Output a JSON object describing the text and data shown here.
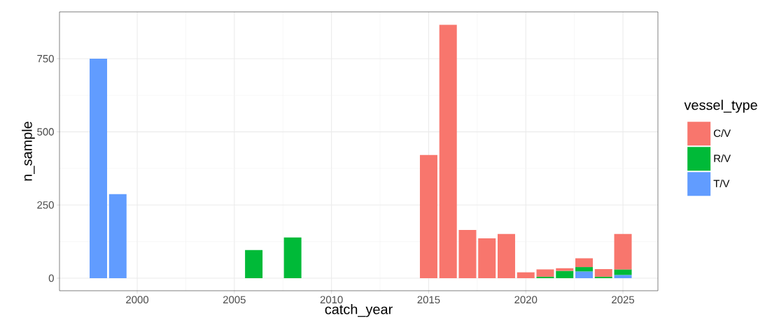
{
  "chart_data": {
    "type": "bar",
    "stacked": true,
    "xlabel": "catch_year",
    "ylabel": "n_sample",
    "legend_title": "vessel_type",
    "x": [
      1998,
      1999,
      2006,
      2008,
      2015,
      2016,
      2017,
      2018,
      2019,
      2020,
      2021,
      2022,
      2023,
      2024,
      2025
    ],
    "series": [
      {
        "name": "T/V",
        "color": "#619cff",
        "values": [
          750,
          287,
          null,
          null,
          null,
          null,
          null,
          null,
          null,
          null,
          null,
          null,
          23,
          null,
          11
        ]
      },
      {
        "name": "R/V",
        "color": "#00ba38",
        "values": [
          null,
          null,
          96,
          139,
          null,
          null,
          null,
          null,
          null,
          null,
          5,
          25,
          15,
          5,
          19
        ]
      },
      {
        "name": "C/V",
        "color": "#f8766d",
        "values": [
          null,
          null,
          null,
          null,
          421,
          866,
          165,
          136,
          151,
          20,
          25,
          9,
          30,
          26,
          121
        ]
      }
    ],
    "xlim": [
      1996,
      2026.8
    ],
    "ylim": [
      -43,
      910
    ],
    "xticks": [
      2000,
      2005,
      2010,
      2015,
      2020,
      2025
    ],
    "yticks": [
      0,
      250,
      500,
      750
    ],
    "grid": true,
    "legend": "right"
  }
}
